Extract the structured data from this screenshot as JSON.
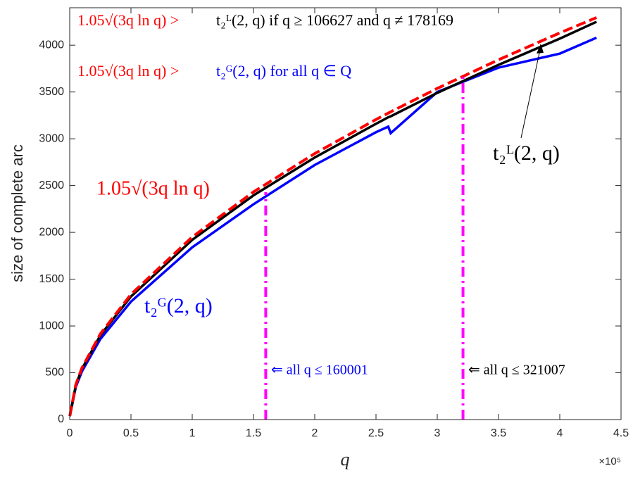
{
  "chart_data": {
    "type": "line",
    "xlabel": "q",
    "ylabel": "size of complete arc",
    "x_exponent": "×10⁵",
    "xlim": [
      0,
      450000
    ],
    "ylim": [
      0,
      4400
    ],
    "xticks": [
      0,
      {
        "value": 50000,
        "label": "0.5"
      },
      {
        "value": 100000,
        "label": "1"
      },
      {
        "value": 150000,
        "label": "1.5"
      },
      {
        "value": 200000,
        "label": "2"
      },
      {
        "value": 250000,
        "label": "2.5"
      },
      {
        "value": 300000,
        "label": "3"
      },
      {
        "value": 350000,
        "label": "3.5"
      },
      {
        "value": 400000,
        "label": "4"
      },
      {
        "value": 450000,
        "label": "4.5"
      }
    ],
    "yticks": [
      0,
      500,
      1000,
      1500,
      2000,
      2500,
      3000,
      3500,
      4000
    ],
    "grid": false,
    "series": [
      {
        "color": "#0000ff",
        "style": "solid",
        "x": [
          100,
          5000,
          10000,
          25000,
          50000,
          100000,
          150000,
          200000,
          250000,
          260000,
          262000,
          300000,
          350000,
          400000,
          430000
        ],
        "values": [
          36,
          350,
          515,
          860,
          1260,
          1840,
          2300,
          2720,
          3070,
          3130,
          3060,
          3500,
          3760,
          3910,
          4080
        ]
      },
      {
        "color": "#000000",
        "style": "solid",
        "x": [
          100,
          5000,
          10000,
          25000,
          50000,
          100000,
          150000,
          200000,
          250000,
          260000,
          262000,
          300000,
          350000,
          400000,
          430000
        ],
        "values": [
          38,
          368,
          542,
          900,
          1315,
          1920,
          2395,
          2800,
          3160,
          3230,
          3240,
          3490,
          3790,
          4070,
          4250
        ]
      },
      {
        "color": "#ff0000",
        "style": "dashed",
        "x": [
          100,
          5000,
          10000,
          25000,
          50000,
          100000,
          150000,
          200000,
          250000,
          260000,
          262000,
          300000,
          350000,
          400000,
          430000
        ],
        "values": [
          39,
          375,
          552,
          915,
          1338,
          1951,
          2432,
          2842,
          3206,
          3274,
          3288,
          3538,
          3844,
          4131,
          4295
        ]
      },
      {
        "color": "#ff00ff",
        "style": "dashdot",
        "x": [
          160001,
          160001
        ],
        "values": [
          0,
          2430
        ]
      },
      {
        "color": "#ff00ff",
        "style": "dashdot",
        "x": [
          321007,
          321007
        ],
        "values": [
          0,
          3660
        ]
      }
    ],
    "annotations": [
      {
        "text": "1.05√(3q ln q) >",
        "color": "#ff0000"
      },
      {
        "text": "t₂ᴸ(2, q) if q ≥ 106627 and q ≠ 178169",
        "color": "#000000"
      },
      {
        "text": "1.05√(3q ln q) >",
        "color": "#ff0000"
      },
      {
        "text": "t₂ᴳ(2, q) for all q ∈ Q",
        "color": "#0000ff"
      },
      {
        "text": "1.05√(3q ln q)",
        "color": "#ff0000"
      },
      {
        "text": "t₂ᴸ(2, q)",
        "color": "#000000"
      },
      {
        "text": "t₂ᴳ(2, q)",
        "color": "#0000ff"
      },
      {
        "text": "⇐ all q ≤ 160001",
        "color": "#0000ff"
      },
      {
        "text": "⇐ all q ≤ 321007",
        "color": "#000000"
      }
    ]
  }
}
